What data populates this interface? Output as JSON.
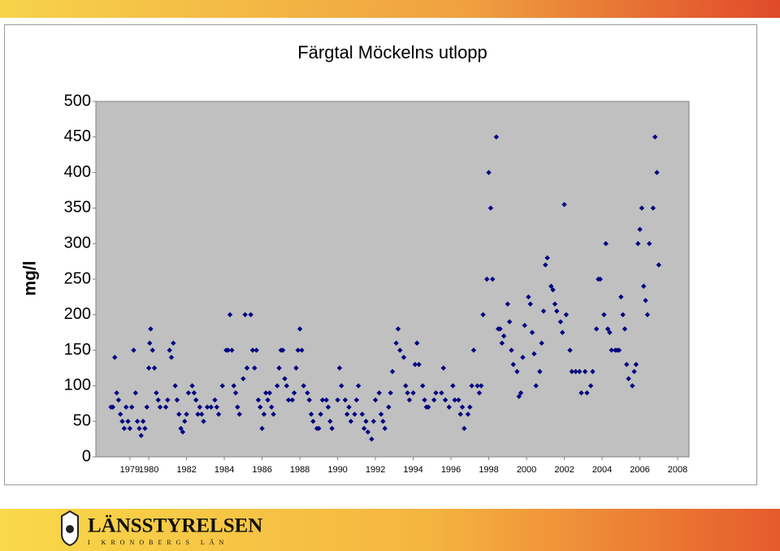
{
  "chart_data": {
    "type": "scatter",
    "title": "Färgtal Möckelns utlopp",
    "y_label": "mg/l",
    "color": "#000080",
    "grid": false,
    "xlim": [
      1977.2,
      2008.6
    ],
    "xticks": [
      1979,
      1980,
      1982,
      1984,
      1986,
      1988,
      1990,
      1992,
      1994,
      1996,
      1998,
      2000,
      2002,
      2004,
      2006,
      2008
    ],
    "ylim": [
      0,
      500
    ],
    "yticks": [
      0,
      50,
      100,
      150,
      200,
      250,
      300,
      350,
      400,
      450,
      500
    ],
    "x": [
      1978.0,
      1978.1,
      1978.2,
      1978.3,
      1978.4,
      1978.5,
      1978.6,
      1978.7,
      1978.8,
      1978.9,
      1979.0,
      1979.1,
      1979.2,
      1979.3,
      1979.4,
      1979.5,
      1979.6,
      1979.7,
      1979.8,
      1979.9,
      1980.0,
      1980.05,
      1980.1,
      1980.2,
      1980.3,
      1980.4,
      1980.5,
      1980.6,
      1980.9,
      1981.0,
      1981.1,
      1981.2,
      1981.3,
      1981.4,
      1981.5,
      1981.6,
      1981.7,
      1981.8,
      1981.9,
      1982.0,
      1982.1,
      1982.3,
      1982.4,
      1982.5,
      1982.6,
      1982.7,
      1982.8,
      1982.9,
      1983.1,
      1983.3,
      1983.5,
      1983.6,
      1983.7,
      1983.9,
      1984.1,
      1984.2,
      1984.3,
      1984.4,
      1984.5,
      1984.6,
      1984.7,
      1984.8,
      1985.0,
      1985.1,
      1985.2,
      1985.4,
      1985.5,
      1985.6,
      1985.7,
      1985.8,
      1985.9,
      1986.0,
      1986.1,
      1986.2,
      1986.3,
      1986.4,
      1986.5,
      1986.6,
      1986.8,
      1986.9,
      1987.0,
      1987.1,
      1987.2,
      1987.3,
      1987.4,
      1987.6,
      1987.7,
      1987.8,
      1987.9,
      1988.0,
      1988.1,
      1988.2,
      1988.4,
      1988.5,
      1988.6,
      1988.7,
      1988.9,
      1989.0,
      1989.1,
      1989.2,
      1989.4,
      1989.5,
      1989.6,
      1989.7,
      1990.0,
      1990.1,
      1990.2,
      1990.4,
      1990.5,
      1990.6,
      1990.7,
      1990.9,
      1991.0,
      1991.1,
      1991.3,
      1991.4,
      1991.5,
      1991.6,
      1991.8,
      1991.9,
      1992.0,
      1992.2,
      1992.3,
      1992.4,
      1992.5,
      1992.7,
      1992.8,
      1992.9,
      1993.1,
      1993.2,
      1993.3,
      1993.5,
      1993.6,
      1993.7,
      1993.8,
      1994.0,
      1994.1,
      1994.2,
      1994.3,
      1994.5,
      1994.6,
      1994.7,
      1994.8,
      1995.1,
      1995.2,
      1995.5,
      1995.6,
      1995.7,
      1995.9,
      1996.1,
      1996.2,
      1996.4,
      1996.5,
      1996.6,
      1996.7,
      1996.9,
      1997.0,
      1997.1,
      1997.2,
      1997.4,
      1997.5,
      1997.6,
      1997.7,
      1997.9,
      1998.0,
      1998.1,
      1998.2,
      1998.4,
      1998.5,
      1998.6,
      1998.7,
      1998.8,
      1999.0,
      1999.1,
      1999.2,
      1999.3,
      1999.5,
      1999.6,
      1999.7,
      1999.8,
      1999.9,
      2000.1,
      2000.2,
      2000.3,
      2000.4,
      2000.5,
      2000.7,
      2000.8,
      2000.9,
      2001.0,
      2001.1,
      2001.3,
      2001.4,
      2001.5,
      2001.6,
      2001.8,
      2001.9,
      2002.0,
      2002.1,
      2002.3,
      2002.4,
      2002.6,
      2002.8,
      2002.9,
      2003.1,
      2003.2,
      2003.4,
      2003.5,
      2003.7,
      2003.8,
      2003.9,
      2004.1,
      2004.2,
      2004.3,
      2004.4,
      2004.5,
      2004.7,
      2004.8,
      2004.9,
      2005.0,
      2005.1,
      2005.2,
      2005.3,
      2005.4,
      2005.6,
      2005.7,
      2005.8,
      2005.9,
      2006.0,
      2006.1,
      2006.2,
      2006.3,
      2006.4,
      2006.5,
      2006.7,
      2006.8,
      2006.9,
      2007.0
    ],
    "values": [
      70,
      70,
      140,
      90,
      80,
      60,
      50,
      40,
      70,
      50,
      40,
      70,
      150,
      90,
      50,
      40,
      30,
      50,
      40,
      70,
      125,
      160,
      180,
      150,
      125,
      90,
      80,
      70,
      70,
      80,
      150,
      140,
      160,
      100,
      80,
      60,
      40,
      35,
      50,
      60,
      90,
      100,
      90,
      80,
      60,
      70,
      60,
      50,
      70,
      70,
      80,
      70,
      60,
      100,
      150,
      150,
      200,
      150,
      100,
      90,
      70,
      60,
      110,
      200,
      125,
      200,
      150,
      125,
      150,
      80,
      70,
      40,
      60,
      90,
      80,
      90,
      70,
      60,
      100,
      125,
      150,
      150,
      110,
      100,
      80,
      80,
      90,
      125,
      150,
      180,
      150,
      100,
      90,
      80,
      60,
      50,
      40,
      40,
      60,
      80,
      80,
      70,
      50,
      40,
      80,
      125,
      100,
      80,
      60,
      70,
      50,
      60,
      80,
      100,
      60,
      40,
      50,
      35,
      25,
      50,
      80,
      90,
      60,
      50,
      40,
      70,
      90,
      120,
      160,
      180,
      150,
      140,
      100,
      90,
      80,
      90,
      130,
      160,
      130,
      100,
      80,
      70,
      70,
      80,
      90,
      90,
      125,
      80,
      70,
      100,
      80,
      80,
      60,
      70,
      40,
      60,
      70,
      100,
      150,
      100,
      90,
      100,
      200,
      250,
      400,
      350,
      250,
      450,
      180,
      180,
      160,
      170,
      215,
      190,
      150,
      130,
      120,
      85,
      90,
      140,
      185,
      225,
      215,
      175,
      145,
      100,
      120,
      160,
      205,
      270,
      280,
      240,
      235,
      215,
      205,
      190,
      175,
      355,
      200,
      150,
      120,
      120,
      120,
      90,
      120,
      90,
      100,
      120,
      180,
      250,
      250,
      200,
      300,
      180,
      175,
      150,
      150,
      150,
      150,
      225,
      200,
      180,
      130,
      110,
      100,
      120,
      130,
      300,
      320,
      350,
      240,
      220,
      200,
      300,
      350,
      450,
      400,
      270
    ]
  },
  "footer": {
    "logo": "LÄNSSTYRELSEN",
    "logo_sub": "I KRONOBERGS LÄN"
  }
}
